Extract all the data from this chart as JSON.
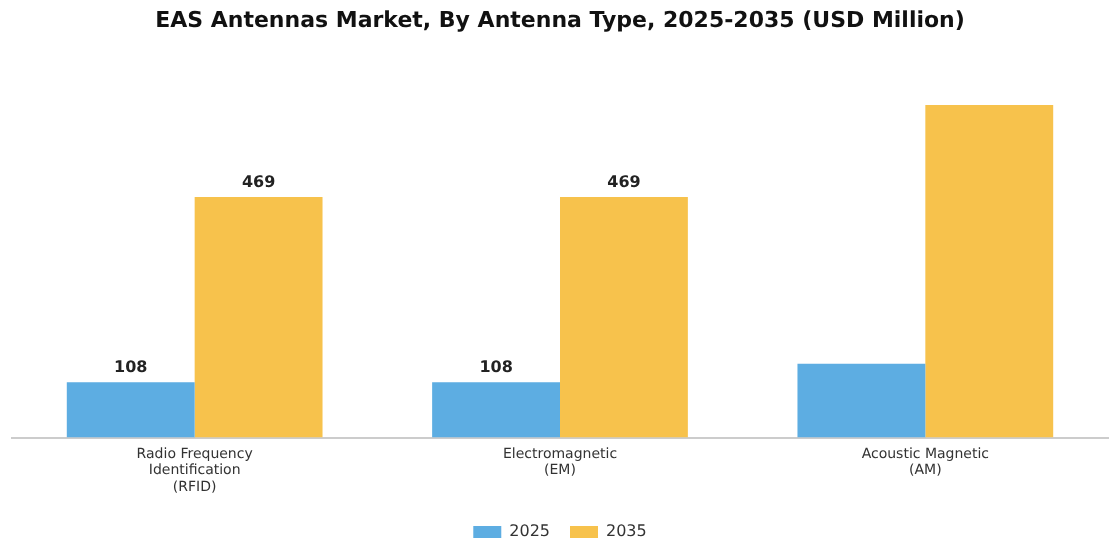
{
  "chart_data": {
    "type": "bar",
    "title": "EAS Antennas Market, By Antenna Type, 2025-2035 (USD Million)",
    "categories": [
      "Radio Frequency Identification (RFID)",
      "Electromagnetic (EM)",
      "Acoustic Magnetic (AM)"
    ],
    "series": [
      {
        "name": "2025",
        "color": "#5dade2",
        "values": [
          108,
          108,
          144
        ],
        "value_labels": [
          "108",
          "108",
          null
        ]
      },
      {
        "name": "2035",
        "color": "#f7c24c",
        "values": [
          469,
          469,
          648
        ],
        "value_labels": [
          "469",
          "469",
          null
        ]
      }
    ],
    "legend": "bottom",
    "grid": false
  }
}
